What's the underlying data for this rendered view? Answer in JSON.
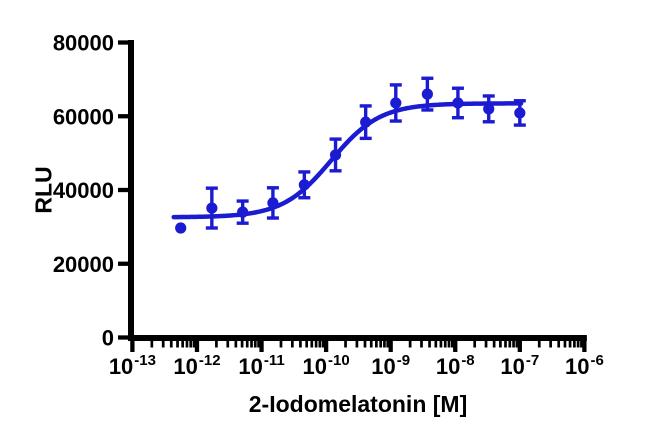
{
  "chart_data": {
    "type": "scatter",
    "title": "",
    "xlabel": "2-Iodomelatonin [M]",
    "ylabel": "RLU",
    "x_scale": "log10",
    "xlim_exponents": [
      -13,
      -6
    ],
    "x_tick_exponents": [
      -13,
      -12,
      -11,
      -10,
      -9,
      -8,
      -7,
      -6
    ],
    "x_tick_base": "10",
    "y_ticks": [
      0,
      20000,
      40000,
      60000,
      80000
    ],
    "y_tick_labels": [
      "0",
      "20000",
      "40000",
      "60000",
      "80000"
    ],
    "ylim": [
      0,
      80000
    ],
    "grid": false,
    "legend": "none",
    "background": "#ffffff",
    "axis_color": "#000000",
    "series": [
      {
        "name": "2-Iodomelatonin",
        "marker": "circle",
        "color": "#1b1bd2",
        "x_molar": [
          5.6e-13,
          1.7e-12,
          5.1e-12,
          1.5e-11,
          4.6e-11,
          1.4e-10,
          4.1e-10,
          1.2e-09,
          3.7e-09,
          1.1e-08,
          3.3e-08,
          1e-07
        ],
        "y_rlu": [
          29700,
          35100,
          34000,
          36500,
          41400,
          49500,
          58400,
          63600,
          66000,
          63600,
          62000,
          60900
        ],
        "y_err": [
          0,
          5400,
          3000,
          4100,
          3500,
          4300,
          4400,
          4900,
          4300,
          4000,
          3500,
          3300
        ]
      }
    ],
    "fit_curve": {
      "model": "four-parameter-logistic",
      "bottom": 32600,
      "top": 63500,
      "logEC50": -9.92,
      "hill_slope": 1.15,
      "x_start_log": -12.36,
      "x_end_log": -6.98
    }
  }
}
